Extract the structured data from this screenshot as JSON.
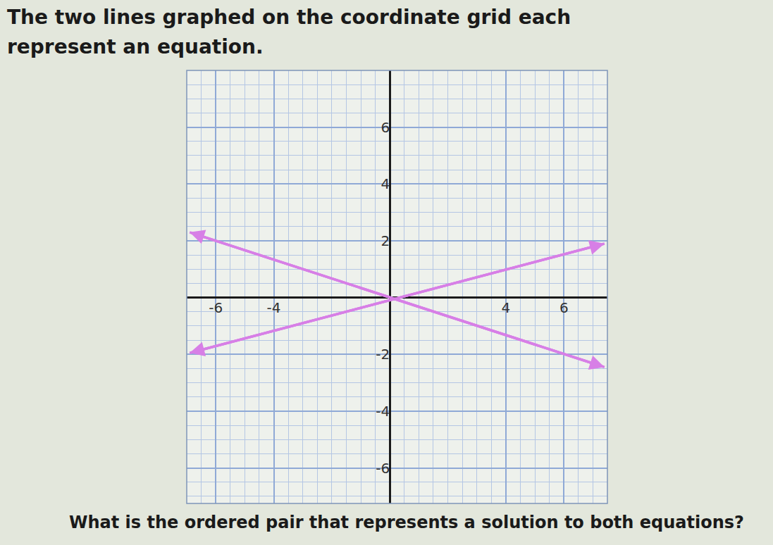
{
  "chart_data": {
    "type": "line",
    "title": "The two lines graphed on the coordinate grid each represent an equation.",
    "annotations": [
      "What is the ordered pair that represents a solution to both equations?"
    ],
    "series": [
      {
        "x": [
          -6.9,
          7.4
        ],
        "values": [
          2.3,
          -2.45
        ],
        "color": "#d77fe6",
        "marker": "arrow"
      },
      {
        "x": [
          -6.9,
          7.4
        ],
        "values": [
          -1.95,
          1.9
        ],
        "color": "#d77fe6",
        "marker": "arrow"
      }
    ],
    "xlim": [
      -7,
      7.5
    ],
    "ylim": [
      -7.25,
      8
    ],
    "xticks": [
      -6,
      -4,
      4,
      6
    ],
    "yticks": [
      -6,
      -4,
      -2,
      2,
      4,
      6
    ],
    "grid": true
  }
}
